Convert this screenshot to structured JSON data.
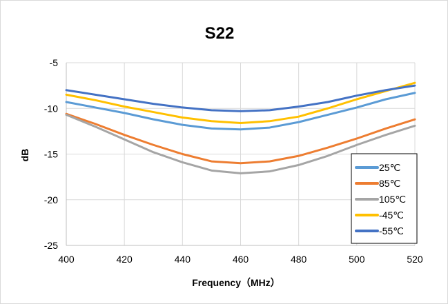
{
  "chart_data": {
    "type": "line",
    "title": "S22",
    "xlabel": "Frequency（MHz）",
    "ylabel": "dB",
    "xlim": [
      400,
      520
    ],
    "ylim": [
      -25,
      -5
    ],
    "xticks": [
      400,
      420,
      440,
      460,
      480,
      500,
      520
    ],
    "yticks": [
      -5,
      -10,
      -15,
      -20,
      -25
    ],
    "grid": true,
    "legend_position": "right",
    "x": [
      400,
      410,
      420,
      430,
      440,
      450,
      460,
      470,
      480,
      490,
      500,
      510,
      520
    ],
    "series": [
      {
        "name": "25℃",
        "color": "#5b9bd5",
        "values": [
          -9.3,
          -9.9,
          -10.5,
          -11.2,
          -11.8,
          -12.2,
          -12.3,
          -12.1,
          -11.5,
          -10.7,
          -9.9,
          -9.0,
          -8.3
        ]
      },
      {
        "name": "85℃",
        "color": "#ed7d31",
        "values": [
          -10.6,
          -11.7,
          -12.9,
          -14.0,
          -15.0,
          -15.8,
          -16.0,
          -15.8,
          -15.2,
          -14.3,
          -13.3,
          -12.2,
          -11.2
        ]
      },
      {
        "name": "105℃",
        "color": "#a5a5a5",
        "values": [
          -10.7,
          -12.0,
          -13.4,
          -14.8,
          -15.9,
          -16.8,
          -17.1,
          -16.9,
          -16.2,
          -15.2,
          -14.0,
          -12.9,
          -11.9
        ]
      },
      {
        "name": "-45℃",
        "color": "#ffc000",
        "values": [
          -8.5,
          -9.1,
          -9.8,
          -10.4,
          -11.0,
          -11.4,
          -11.6,
          -11.4,
          -10.9,
          -10.0,
          -9.0,
          -8.1,
          -7.2
        ]
      },
      {
        "name": "-55℃",
        "color": "#4472c4",
        "values": [
          -8.0,
          -8.5,
          -9.0,
          -9.5,
          -9.9,
          -10.2,
          -10.3,
          -10.2,
          -9.8,
          -9.3,
          -8.6,
          -8.0,
          -7.5
        ]
      }
    ]
  }
}
